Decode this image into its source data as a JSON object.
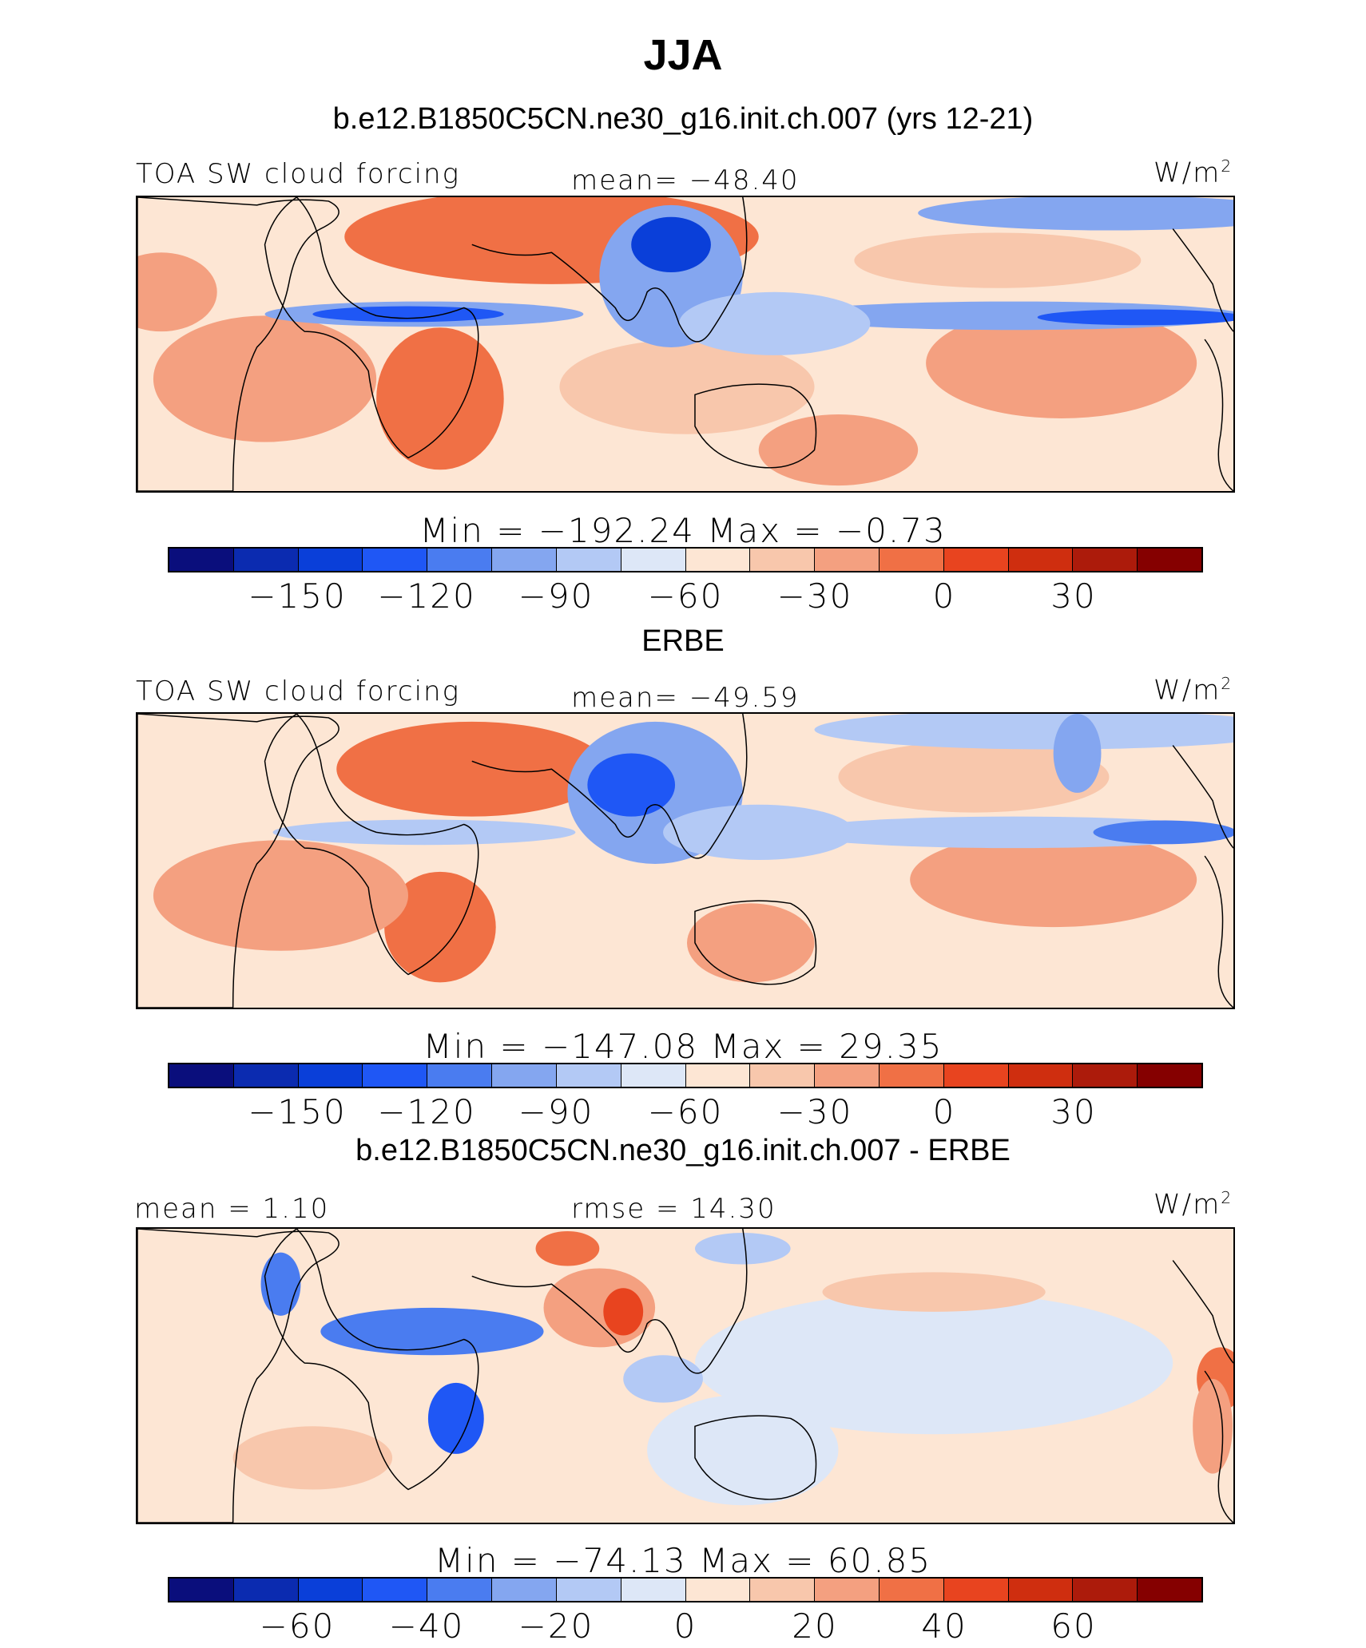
{
  "title": "JJA",
  "colors": [
    "#0a0e7c",
    "#0b2bb0",
    "#0a3fd9",
    "#1f57f5",
    "#4a7cf0",
    "#84a6f0",
    "#b3c9f5",
    "#dde7f7",
    "#fde6d4",
    "#f8c7ac",
    "#f4a080",
    "#f07045",
    "#e8441f",
    "#cf2e0f",
    "#ac1b0b",
    "#850000"
  ],
  "panels": [
    {
      "heading": "b.e12.B1850C5CN.ne30_g16.init.ch.007 (yrs 12-21)",
      "left_label": "TOA SW cloud forcing",
      "center_label": "mean=  −48.40",
      "units": "W/m",
      "units_sup": "2",
      "minmax": "Min  =  −192.24  Max  =    −0.73",
      "ticks": [
        "−150",
        "−120",
        "−90",
        "−60",
        "−30",
        "0",
        "30"
      ]
    },
    {
      "heading": "ERBE",
      "left_label": "TOA SW cloud forcing",
      "center_label": "mean=  −49.59",
      "units": "W/m",
      "units_sup": "2",
      "minmax": "Min  =  −147.08  Max  =    29.35",
      "ticks": [
        "−150",
        "−120",
        "−90",
        "−60",
        "−30",
        "0",
        "30"
      ]
    },
    {
      "heading": "b.e12.B1850C5CN.ne30_g16.init.ch.007 - ERBE",
      "left_label": "mean  =    1.10",
      "center_label": "rmse  =   14.30",
      "units": "W/m",
      "units_sup": "2",
      "minmax": "Min  =  −74.13  Max  =    60.85",
      "ticks": [
        "−60",
        "−40",
        "−20",
        "0",
        "20",
        "40",
        "60"
      ]
    }
  ]
}
